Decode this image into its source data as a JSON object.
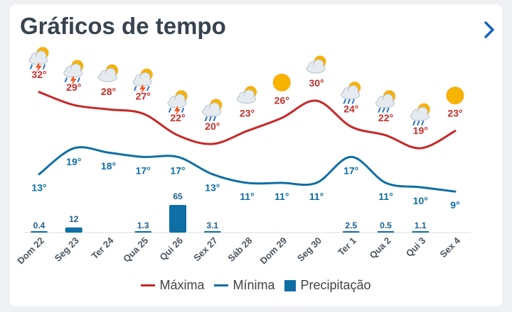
{
  "header": {
    "title": "Gráficos de tempo"
  },
  "chart_data": {
    "type": "line",
    "categories": [
      "Dom 22",
      "Seg 23",
      "Ter 24",
      "Qua 25",
      "Qui 26",
      "Sex 27",
      "Sáb 28",
      "Dom 29",
      "Seg 30",
      "Ter 1",
      "Qua 2",
      "Qui 3",
      "Sex 4"
    ],
    "icons": [
      "sun-cloud-storm-icon",
      "sun-cloud-storm-icon",
      "sun-cloud-icon",
      "sun-cloud-storm-icon",
      "sun-cloud-storm-icon",
      "sun-cloud-rain-icon",
      "sun-cloud-icon",
      "sun-icon",
      "sun-cloud-icon",
      "sun-cloud-rain-icon",
      "sun-cloud-rain-icon",
      "sun-cloud-rain-icon",
      "sun-icon"
    ],
    "series": [
      {
        "name": "Máxima",
        "values": [
          32,
          29,
          28,
          27,
          22,
          20,
          23,
          26,
          30,
          24,
          22,
          19,
          23
        ],
        "labels": [
          "32°",
          "29°",
          "28°",
          "27°",
          "22°",
          "20°",
          "23°",
          "26°",
          "30°",
          "24°",
          "22°",
          "19°",
          "23°"
        ]
      },
      {
        "name": "Mínima",
        "values": [
          13,
          19,
          18,
          17,
          17,
          13,
          11,
          11,
          11,
          17,
          11,
          10,
          9
        ],
        "labels": [
          "13°",
          "19°",
          "18°",
          "17°",
          "17°",
          "13°",
          "11°",
          "11°",
          "11°",
          "17°",
          "11°",
          "10°",
          "9°"
        ]
      },
      {
        "name": "Precipitação",
        "values": [
          0.4,
          12,
          0,
          1.3,
          65,
          3.1,
          0,
          0,
          0,
          2.5,
          0.5,
          1.1,
          0
        ],
        "labels": [
          "0.4",
          "12",
          "",
          "1.3",
          "65",
          "3.1",
          "",
          "",
          "",
          "2.5",
          "0.5",
          "1.1",
          ""
        ]
      }
    ],
    "colors": {
      "max": "#c62828",
      "min": "#0f6ea4",
      "precip": "#0f6ea4",
      "temp_label_max": "#c0302b",
      "temp_label_min": "#0f6ea4"
    },
    "legend": {
      "position": "bottom"
    }
  }
}
